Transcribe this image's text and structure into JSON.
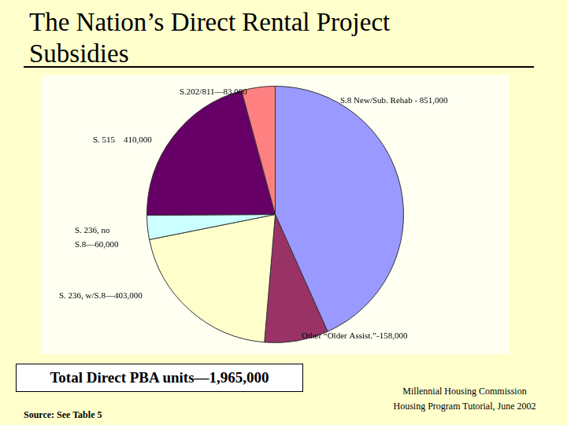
{
  "chart_data": {
    "type": "pie",
    "title": "The Nation’s Direct Rental Project Subsidies",
    "categories": [
      "S.8 New/Sub. Rehab - 851,000",
      "Other “Older Assist.”-158,000",
      "S. 236, w/S.8—403,000",
      "S. 236, no S.8—60,000",
      "S. 515    410,000",
      "S.202/811—83,000"
    ],
    "values": [
      851000,
      158000,
      403000,
      60000,
      410000,
      83000
    ],
    "colors": [
      "#9999ff",
      "#993366",
      "#ffffcc",
      "#ccffff",
      "#660066",
      "#ff8080"
    ],
    "annotations": [
      "Total Direct PBA units—1,965,000",
      "Source: See Table 5",
      "Millennial Housing Commission",
      "Housing Program Tutorial, June 2002"
    ]
  }
}
